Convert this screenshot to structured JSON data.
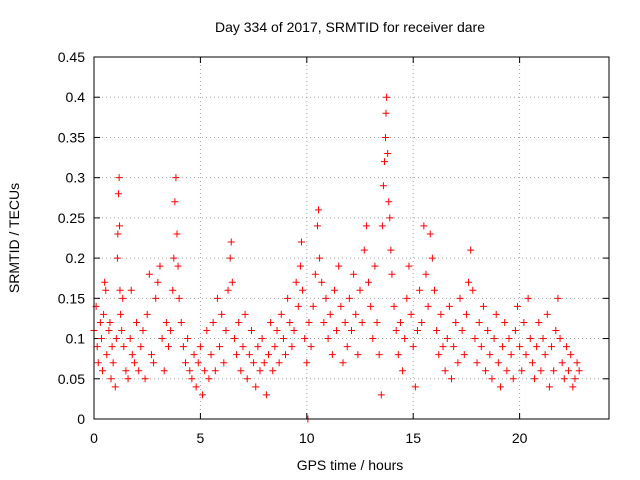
{
  "chart_data": {
    "type": "scatter",
    "title": "Day 334 of 2017, SRMTID for receiver dare",
    "xlabel": "GPS time / hours",
    "ylabel": "SRMTID / TECUs",
    "xlim": [
      0,
      24.2
    ],
    "ylim": [
      0,
      0.45
    ],
    "xticks": [
      0,
      5,
      10,
      15,
      20
    ],
    "xtick_labels": [
      "0",
      "5",
      "10",
      "15",
      "20"
    ],
    "yticks": [
      0,
      0.05,
      0.1,
      0.15,
      0.2,
      0.25,
      0.3,
      0.35,
      0.4,
      0.45
    ],
    "ytick_labels": [
      "0",
      "0.05",
      "0.1",
      "0.15",
      "0.2",
      "0.25",
      "0.3",
      "0.35",
      "0.4",
      "0.45"
    ],
    "grid": true,
    "marker": "+",
    "series": [
      {
        "name": "SRMTID",
        "color": "#ff0000",
        "points": [
          [
            0.0,
            0.11
          ],
          [
            0.1,
            0.14
          ],
          [
            0.15,
            0.09
          ],
          [
            0.2,
            0.07
          ],
          [
            0.3,
            0.12
          ],
          [
            0.35,
            0.1
          ],
          [
            0.4,
            0.06
          ],
          [
            0.45,
            0.13
          ],
          [
            0.5,
            0.17
          ],
          [
            0.55,
            0.16
          ],
          [
            0.6,
            0.08
          ],
          [
            0.7,
            0.11
          ],
          [
            0.75,
            0.12
          ],
          [
            0.8,
            0.05
          ],
          [
            0.85,
            0.09
          ],
          [
            0.9,
            0.07
          ],
          [
            1.0,
            0.04
          ],
          [
            1.05,
            0.1
          ],
          [
            1.1,
            0.2
          ],
          [
            1.12,
            0.23
          ],
          [
            1.15,
            0.28
          ],
          [
            1.18,
            0.3
          ],
          [
            1.2,
            0.24
          ],
          [
            1.22,
            0.16
          ],
          [
            1.25,
            0.13
          ],
          [
            1.3,
            0.11
          ],
          [
            1.35,
            0.15
          ],
          [
            1.4,
            0.09
          ],
          [
            1.5,
            0.06
          ],
          [
            1.6,
            0.05
          ],
          [
            1.7,
            0.1
          ],
          [
            1.75,
            0.16
          ],
          [
            1.8,
            0.08
          ],
          [
            1.9,
            0.07
          ],
          [
            2.0,
            0.12
          ],
          [
            2.1,
            0.06
          ],
          [
            2.2,
            0.09
          ],
          [
            2.3,
            0.11
          ],
          [
            2.4,
            0.05
          ],
          [
            2.5,
            0.13
          ],
          [
            2.6,
            0.18
          ],
          [
            2.7,
            0.08
          ],
          [
            2.8,
            0.07
          ],
          [
            2.9,
            0.15
          ],
          [
            3.0,
            0.17
          ],
          [
            3.1,
            0.19
          ],
          [
            3.2,
            0.1
          ],
          [
            3.3,
            0.06
          ],
          [
            3.4,
            0.12
          ],
          [
            3.5,
            0.09
          ],
          [
            3.6,
            0.11
          ],
          [
            3.7,
            0.16
          ],
          [
            3.75,
            0.2
          ],
          [
            3.8,
            0.27
          ],
          [
            3.85,
            0.3
          ],
          [
            3.9,
            0.23
          ],
          [
            3.95,
            0.19
          ],
          [
            4.0,
            0.15
          ],
          [
            4.1,
            0.12
          ],
          [
            4.2,
            0.09
          ],
          [
            4.3,
            0.07
          ],
          [
            4.4,
            0.1
          ],
          [
            4.5,
            0.06
          ],
          [
            4.6,
            0.05
          ],
          [
            4.7,
            0.08
          ],
          [
            4.8,
            0.04
          ],
          [
            4.9,
            0.07
          ],
          [
            5.0,
            0.09
          ],
          [
            5.1,
            0.03
          ],
          [
            5.2,
            0.06
          ],
          [
            5.3,
            0.11
          ],
          [
            5.4,
            0.05
          ],
          [
            5.5,
            0.08
          ],
          [
            5.6,
            0.12
          ],
          [
            5.7,
            0.06
          ],
          [
            5.8,
            0.15
          ],
          [
            5.9,
            0.09
          ],
          [
            6.0,
            0.13
          ],
          [
            6.1,
            0.07
          ],
          [
            6.2,
            0.11
          ],
          [
            6.3,
            0.16
          ],
          [
            6.4,
            0.2
          ],
          [
            6.45,
            0.22
          ],
          [
            6.5,
            0.17
          ],
          [
            6.6,
            0.1
          ],
          [
            6.7,
            0.08
          ],
          [
            6.8,
            0.12
          ],
          [
            6.9,
            0.06
          ],
          [
            7.0,
            0.09
          ],
          [
            7.1,
            0.13
          ],
          [
            7.2,
            0.05
          ],
          [
            7.3,
            0.08
          ],
          [
            7.4,
            0.11
          ],
          [
            7.5,
            0.07
          ],
          [
            7.6,
            0.04
          ],
          [
            7.7,
            0.09
          ],
          [
            7.8,
            0.06
          ],
          [
            7.9,
            0.1
          ],
          [
            8.0,
            0.07
          ],
          [
            8.1,
            0.03
          ],
          [
            8.2,
            0.08
          ],
          [
            8.3,
            0.12
          ],
          [
            8.4,
            0.06
          ],
          [
            8.5,
            0.09
          ],
          [
            8.6,
            0.11
          ],
          [
            8.7,
            0.07
          ],
          [
            8.8,
            0.13
          ],
          [
            8.9,
            0.1
          ],
          [
            9.0,
            0.08
          ],
          [
            9.1,
            0.15
          ],
          [
            9.2,
            0.12
          ],
          [
            9.3,
            0.09
          ],
          [
            9.4,
            0.11
          ],
          [
            9.5,
            0.17
          ],
          [
            9.6,
            0.14
          ],
          [
            9.7,
            0.19
          ],
          [
            9.75,
            0.22
          ],
          [
            9.8,
            0.16
          ],
          [
            9.9,
            0.1
          ],
          [
            10.0,
            0.07
          ],
          [
            10.05,
            0.0
          ],
          [
            10.1,
            0.12
          ],
          [
            10.2,
            0.09
          ],
          [
            10.3,
            0.14
          ],
          [
            10.4,
            0.18
          ],
          [
            10.5,
            0.24
          ],
          [
            10.55,
            0.26
          ],
          [
            10.6,
            0.2
          ],
          [
            10.7,
            0.17
          ],
          [
            10.8,
            0.12
          ],
          [
            10.9,
            0.15
          ],
          [
            11.0,
            0.1
          ],
          [
            11.1,
            0.13
          ],
          [
            11.2,
            0.08
          ],
          [
            11.3,
            0.16
          ],
          [
            11.4,
            0.11
          ],
          [
            11.5,
            0.19
          ],
          [
            11.6,
            0.14
          ],
          [
            11.7,
            0.07
          ],
          [
            11.8,
            0.12
          ],
          [
            11.9,
            0.09
          ],
          [
            12.0,
            0.15
          ],
          [
            12.1,
            0.11
          ],
          [
            12.2,
            0.18
          ],
          [
            12.3,
            0.13
          ],
          [
            12.4,
            0.08
          ],
          [
            12.5,
            0.16
          ],
          [
            12.6,
            0.12
          ],
          [
            12.7,
            0.21
          ],
          [
            12.8,
            0.24
          ],
          [
            12.9,
            0.17
          ],
          [
            13.0,
            0.14
          ],
          [
            13.1,
            0.1
          ],
          [
            13.2,
            0.19
          ],
          [
            13.3,
            0.12
          ],
          [
            13.4,
            0.08
          ],
          [
            13.5,
            0.03
          ],
          [
            13.55,
            0.24
          ],
          [
            13.6,
            0.29
          ],
          [
            13.65,
            0.32
          ],
          [
            13.7,
            0.35
          ],
          [
            13.72,
            0.38
          ],
          [
            13.75,
            0.4
          ],
          [
            13.8,
            0.33
          ],
          [
            13.85,
            0.27
          ],
          [
            13.9,
            0.25
          ],
          [
            13.95,
            0.21
          ],
          [
            14.0,
            0.18
          ],
          [
            14.1,
            0.14
          ],
          [
            14.2,
            0.11
          ],
          [
            14.3,
            0.08
          ],
          [
            14.4,
            0.12
          ],
          [
            14.5,
            0.06
          ],
          [
            14.6,
            0.1
          ],
          [
            14.7,
            0.15
          ],
          [
            14.8,
            0.19
          ],
          [
            14.9,
            0.13
          ],
          [
            15.0,
            0.09
          ],
          [
            15.1,
            0.04
          ],
          [
            15.2,
            0.11
          ],
          [
            15.3,
            0.16
          ],
          [
            15.4,
            0.12
          ],
          [
            15.5,
            0.24
          ],
          [
            15.6,
            0.18
          ],
          [
            15.7,
            0.14
          ],
          [
            15.8,
            0.23
          ],
          [
            15.9,
            0.2
          ],
          [
            16.0,
            0.16
          ],
          [
            16.1,
            0.11
          ],
          [
            16.2,
            0.08
          ],
          [
            16.3,
            0.13
          ],
          [
            16.4,
            0.09
          ],
          [
            16.5,
            0.06
          ],
          [
            16.6,
            0.1
          ],
          [
            16.7,
            0.14
          ],
          [
            16.8,
            0.05
          ],
          [
            16.9,
            0.09
          ],
          [
            17.0,
            0.12
          ],
          [
            17.1,
            0.07
          ],
          [
            17.2,
            0.15
          ],
          [
            17.3,
            0.11
          ],
          [
            17.4,
            0.08
          ],
          [
            17.5,
            0.13
          ],
          [
            17.6,
            0.17
          ],
          [
            17.7,
            0.21
          ],
          [
            17.8,
            0.16
          ],
          [
            17.9,
            0.1
          ],
          [
            18.0,
            0.07
          ],
          [
            18.1,
            0.12
          ],
          [
            18.2,
            0.09
          ],
          [
            18.3,
            0.14
          ],
          [
            18.4,
            0.06
          ],
          [
            18.5,
            0.11
          ],
          [
            18.6,
            0.08
          ],
          [
            18.7,
            0.05
          ],
          [
            18.8,
            0.1
          ],
          [
            18.9,
            0.13
          ],
          [
            19.0,
            0.07
          ],
          [
            19.1,
            0.04
          ],
          [
            19.2,
            0.09
          ],
          [
            19.3,
            0.12
          ],
          [
            19.4,
            0.06
          ],
          [
            19.5,
            0.1
          ],
          [
            19.6,
            0.08
          ],
          [
            19.7,
            0.05
          ],
          [
            19.8,
            0.11
          ],
          [
            19.9,
            0.14
          ],
          [
            20.0,
            0.09
          ],
          [
            20.1,
            0.06
          ],
          [
            20.2,
            0.12
          ],
          [
            20.3,
            0.08
          ],
          [
            20.4,
            0.15
          ],
          [
            20.5,
            0.1
          ],
          [
            20.6,
            0.07
          ],
          [
            20.7,
            0.05
          ],
          [
            20.8,
            0.09
          ],
          [
            20.9,
            0.12
          ],
          [
            21.0,
            0.06
          ],
          [
            21.1,
            0.1
          ],
          [
            21.2,
            0.08
          ],
          [
            21.3,
            0.13
          ],
          [
            21.4,
            0.04
          ],
          [
            21.5,
            0.09
          ],
          [
            21.6,
            0.06
          ],
          [
            21.7,
            0.11
          ],
          [
            21.8,
            0.15
          ],
          [
            21.9,
            0.1
          ],
          [
            22.0,
            0.07
          ],
          [
            22.1,
            0.05
          ],
          [
            22.2,
            0.09
          ],
          [
            22.3,
            0.06
          ],
          [
            22.4,
            0.08
          ],
          [
            22.5,
            0.04
          ],
          [
            22.6,
            0.05
          ],
          [
            22.7,
            0.07
          ],
          [
            22.8,
            0.06
          ]
        ]
      }
    ]
  }
}
